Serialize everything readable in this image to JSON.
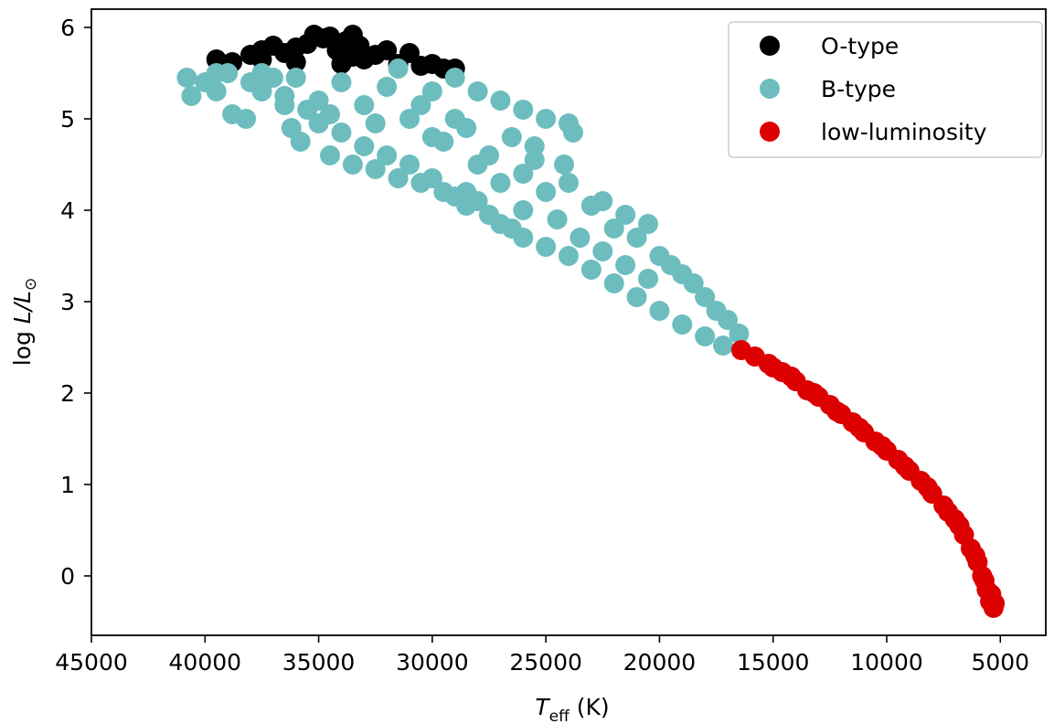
{
  "chart_data": {
    "type": "scatter",
    "xlabel": {
      "symbol": "T",
      "subscript": "eff",
      "unit": "(K)"
    },
    "ylabel": {
      "prefix": "log ",
      "symbol": "L/L",
      "subscript": "⊙"
    },
    "xlim": [
      45000,
      3000
    ],
    "ylim": [
      -0.65,
      6.2
    ],
    "x_inverted": true,
    "x_ticks": [
      45000,
      40000,
      35000,
      30000,
      25000,
      20000,
      15000,
      10000,
      5000
    ],
    "x_tick_labels": [
      "45000",
      "40000",
      "35000",
      "30000",
      "25000",
      "20000",
      "15000",
      "10000",
      "5000"
    ],
    "y_ticks": [
      0,
      1,
      2,
      3,
      4,
      5,
      6
    ],
    "y_tick_labels": [
      "0",
      "1",
      "2",
      "3",
      "4",
      "5",
      "6"
    ],
    "grid": false,
    "legend_position": "top-right",
    "series": [
      {
        "name": "O-type",
        "color": "#000000",
        "points": [
          [
            39500,
            5.65
          ],
          [
            38800,
            5.62
          ],
          [
            38000,
            5.7
          ],
          [
            37500,
            5.75
          ],
          [
            37000,
            5.8
          ],
          [
            36500,
            5.72
          ],
          [
            36000,
            5.78
          ],
          [
            35500,
            5.82
          ],
          [
            35200,
            5.92
          ],
          [
            34800,
            5.88
          ],
          [
            34500,
            5.9
          ],
          [
            34200,
            5.75
          ],
          [
            33800,
            5.85
          ],
          [
            33500,
            5.92
          ],
          [
            33200,
            5.8
          ],
          [
            33000,
            5.65
          ],
          [
            32500,
            5.7
          ],
          [
            32000,
            5.75
          ],
          [
            31500,
            5.6
          ],
          [
            31000,
            5.72
          ],
          [
            30500,
            5.58
          ],
          [
            30000,
            5.6
          ],
          [
            29500,
            5.55
          ],
          [
            29000,
            5.55
          ],
          [
            34000,
            5.6
          ],
          [
            36000,
            5.62
          ],
          [
            37500,
            5.65
          ],
          [
            33500,
            5.68
          ]
        ]
      },
      {
        "name": "B-type",
        "color": "#6dbdbf",
        "points": [
          [
            40800,
            5.45
          ],
          [
            40600,
            5.25
          ],
          [
            40000,
            5.4
          ],
          [
            39500,
            5.3
          ],
          [
            39000,
            5.5
          ],
          [
            38800,
            5.05
          ],
          [
            38200,
            5.0
          ],
          [
            38000,
            5.4
          ],
          [
            37500,
            5.3
          ],
          [
            37000,
            5.45
          ],
          [
            36500,
            5.25
          ],
          [
            36200,
            4.9
          ],
          [
            35800,
            4.75
          ],
          [
            35500,
            5.1
          ],
          [
            35000,
            4.95
          ],
          [
            34500,
            4.6
          ],
          [
            34000,
            4.85
          ],
          [
            33500,
            4.5
          ],
          [
            33000,
            4.7
          ],
          [
            32500,
            4.45
          ],
          [
            32000,
            4.6
          ],
          [
            31500,
            4.35
          ],
          [
            31000,
            4.5
          ],
          [
            30500,
            4.3
          ],
          [
            30000,
            4.35
          ],
          [
            29500,
            4.2
          ],
          [
            29000,
            4.15
          ],
          [
            28500,
            4.05
          ],
          [
            28000,
            4.1
          ],
          [
            27500,
            3.95
          ],
          [
            27000,
            3.85
          ],
          [
            26500,
            3.8
          ],
          [
            26000,
            3.7
          ],
          [
            25000,
            3.6
          ],
          [
            24000,
            3.5
          ],
          [
            23000,
            3.35
          ],
          [
            22000,
            3.2
          ],
          [
            21000,
            3.05
          ],
          [
            20000,
            2.9
          ],
          [
            19000,
            2.75
          ],
          [
            18000,
            2.62
          ],
          [
            17200,
            2.52
          ],
          [
            36000,
            5.45
          ],
          [
            34000,
            5.4
          ],
          [
            32000,
            5.35
          ],
          [
            30000,
            5.3
          ],
          [
            29000,
            5.45
          ],
          [
            28000,
            5.3
          ],
          [
            27000,
            5.2
          ],
          [
            26000,
            5.1
          ],
          [
            25000,
            5.0
          ],
          [
            24000,
            4.95
          ],
          [
            23800,
            4.85
          ],
          [
            24200,
            4.5
          ],
          [
            25500,
            4.7
          ],
          [
            26500,
            4.8
          ],
          [
            27500,
            4.6
          ],
          [
            28500,
            4.9
          ],
          [
            29500,
            4.75
          ],
          [
            31000,
            5.0
          ],
          [
            33000,
            5.15
          ],
          [
            35000,
            5.2
          ],
          [
            37500,
            5.5
          ],
          [
            39500,
            5.5
          ],
          [
            31500,
            5.55
          ],
          [
            29000,
            5.0
          ],
          [
            27000,
            4.3
          ],
          [
            26000,
            4.4
          ],
          [
            25000,
            4.2
          ],
          [
            24000,
            4.3
          ],
          [
            23000,
            4.05
          ],
          [
            22500,
            4.1
          ],
          [
            22000,
            3.8
          ],
          [
            21500,
            3.95
          ],
          [
            21000,
            3.7
          ],
          [
            20500,
            3.85
          ],
          [
            20000,
            3.5
          ],
          [
            19500,
            3.4
          ],
          [
            19000,
            3.3
          ],
          [
            18500,
            3.2
          ],
          [
            18000,
            3.05
          ],
          [
            17500,
            2.9
          ],
          [
            17000,
            2.8
          ],
          [
            16500,
            2.65
          ],
          [
            30000,
            4.8
          ],
          [
            28000,
            4.5
          ],
          [
            26000,
            4.0
          ],
          [
            24500,
            3.9
          ],
          [
            23500,
            3.7
          ],
          [
            22500,
            3.55
          ],
          [
            21500,
            3.4
          ],
          [
            20500,
            3.25
          ],
          [
            32500,
            4.95
          ],
          [
            34500,
            5.05
          ],
          [
            36500,
            5.15
          ],
          [
            30500,
            5.15
          ],
          [
            28500,
            4.2
          ],
          [
            25500,
            4.55
          ]
        ]
      },
      {
        "name": "low-luminosity",
        "color": "#dd0000",
        "points": [
          [
            16400,
            2.47
          ],
          [
            15800,
            2.4
          ],
          [
            15200,
            2.32
          ],
          [
            14600,
            2.23
          ],
          [
            14000,
            2.13
          ],
          [
            13500,
            2.03
          ],
          [
            13000,
            1.96
          ],
          [
            12500,
            1.87
          ],
          [
            12000,
            1.77
          ],
          [
            11500,
            1.68
          ],
          [
            11000,
            1.57
          ],
          [
            10500,
            1.47
          ],
          [
            10000,
            1.37
          ],
          [
            9500,
            1.27
          ],
          [
            9000,
            1.15
          ],
          [
            8500,
            1.04
          ],
          [
            8000,
            0.9
          ],
          [
            7500,
            0.77
          ],
          [
            7000,
            0.62
          ],
          [
            6600,
            0.45
          ],
          [
            6300,
            0.3
          ],
          [
            6000,
            0.15
          ],
          [
            5800,
            0.0
          ],
          [
            5600,
            -0.15
          ],
          [
            5450,
            -0.28
          ],
          [
            5300,
            -0.35
          ],
          [
            5250,
            -0.3
          ],
          [
            5400,
            -0.2
          ],
          [
            5700,
            -0.05
          ],
          [
            6100,
            0.22
          ],
          [
            6800,
            0.55
          ],
          [
            7300,
            0.7
          ],
          [
            8200,
            0.97
          ],
          [
            9200,
            1.2
          ],
          [
            10200,
            1.42
          ],
          [
            11200,
            1.62
          ],
          [
            12200,
            1.8
          ],
          [
            13200,
            2.0
          ],
          [
            14200,
            2.18
          ],
          [
            15000,
            2.28
          ]
        ]
      }
    ]
  }
}
